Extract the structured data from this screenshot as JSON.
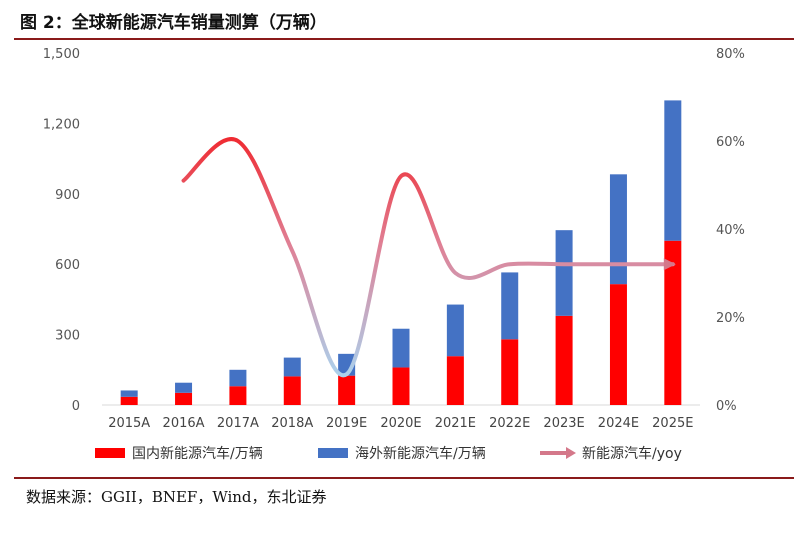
{
  "header": {
    "title": "图 2：全球新能源汽车销量测算（万辆）"
  },
  "footer": {
    "source": "数据来源：GGII，BNEF，Wind，东北证券"
  },
  "chart_data": {
    "type": "bar",
    "stacked": true,
    "categories": [
      "2015A",
      "2016A",
      "2017A",
      "2018A",
      "2019E",
      "2020E",
      "2021E",
      "2022E",
      "2023E",
      "2024E",
      "2025E"
    ],
    "series": [
      {
        "name": "国内新能源汽车/万辆",
        "type": "bar",
        "axis": "left",
        "color": "#ff0000",
        "values": [
          35,
          52,
          80,
          122,
          125,
          160,
          208,
          280,
          380,
          515,
          700
        ]
      },
      {
        "name": "海外新能源汽车/万辆",
        "type": "bar",
        "axis": "left",
        "color": "#4472c4",
        "values": [
          27,
          43,
          70,
          80,
          93,
          165,
          220,
          285,
          365,
          468,
          598
        ]
      },
      {
        "name": "新能源汽车/yoy",
        "type": "line",
        "axis": "right",
        "color": "#d4788a",
        "values": [
          null,
          0.51,
          0.6,
          0.35,
          0.07,
          0.52,
          0.3,
          0.32,
          0.32,
          0.32,
          0.32
        ]
      }
    ],
    "yleft": {
      "ticks": [
        "0",
        "300",
        "600",
        "900",
        "1,200",
        "1,500"
      ],
      "tick_values": [
        0,
        300,
        600,
        900,
        1200,
        1500
      ],
      "ylim": [
        0,
        1500
      ]
    },
    "yright": {
      "ticks": [
        "0%",
        "20%",
        "40%",
        "60%",
        "80%"
      ],
      "tick_values": [
        0,
        0.2,
        0.4,
        0.6,
        0.8
      ],
      "ylim": [
        0,
        0.8
      ]
    },
    "grid": false,
    "legend_position": "bottom",
    "xlabel": "",
    "ylabel": ""
  }
}
